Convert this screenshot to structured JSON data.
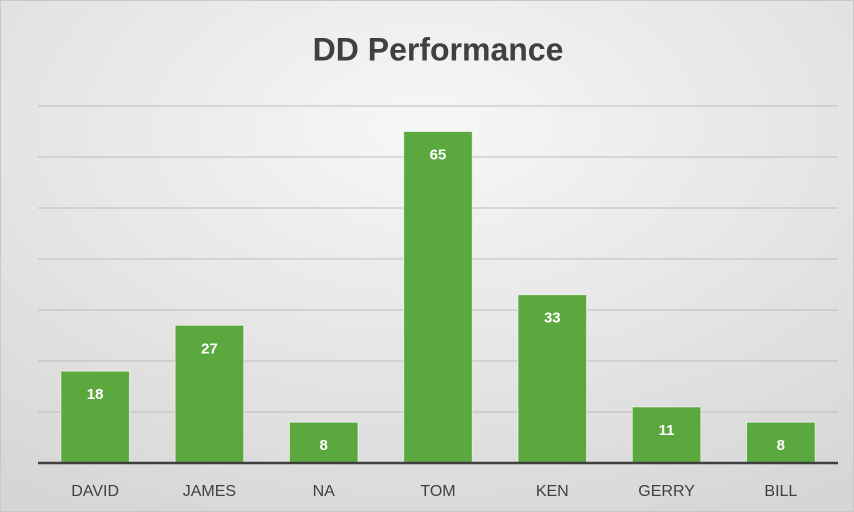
{
  "chart_data": {
    "type": "bar",
    "title": "DD Performance",
    "categories": [
      "DAVID",
      "JAMES",
      "NA",
      "TOM",
      "KEN",
      "GERRY",
      "BILL"
    ],
    "values": [
      18,
      27,
      8,
      65,
      33,
      11,
      8
    ],
    "color": "#5aa83e",
    "ylim": [
      0,
      70
    ],
    "yticks": [
      0,
      10,
      20,
      30,
      40,
      50,
      60,
      70
    ],
    "grid": true
  }
}
